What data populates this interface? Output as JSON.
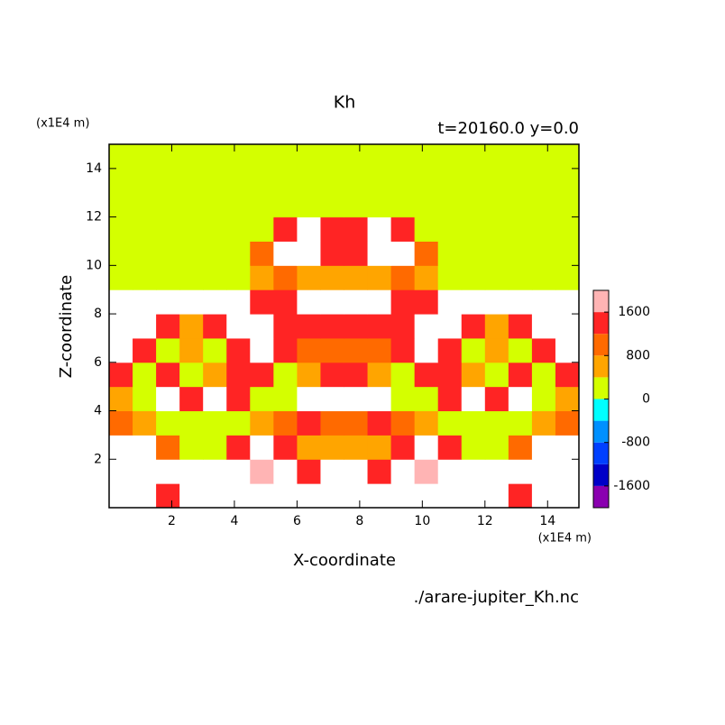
{
  "chart_data": {
    "type": "contour",
    "title": "Kh",
    "subtitle": "t=20160.0 y=0.0",
    "x_label": "X-coordinate",
    "y_label": "Z-coordinate",
    "x_unit": "(x1E4 m)",
    "y_unit": "(x1E4 m)",
    "source": "./arare-jupiter_Kh.nc",
    "xlim": [
      0,
      15
    ],
    "ylim": [
      0,
      15
    ],
    "xticks": [
      2,
      4,
      6,
      8,
      10,
      12,
      14
    ],
    "yticks": [
      2,
      4,
      6,
      8,
      10,
      12,
      14
    ],
    "x": [
      0.375,
      1.125,
      1.875,
      2.625,
      3.375,
      4.125,
      4.875,
      5.625,
      6.375,
      7.125,
      7.875,
      8.625,
      9.375,
      10.125,
      10.875,
      11.625,
      12.375,
      13.125,
      13.875,
      14.625
    ],
    "y": [
      0.5,
      1.5,
      2.5,
      3.5,
      4.5,
      5.5,
      6.5,
      7.5,
      8.5,
      9.5,
      10.5,
      11.5,
      12.5,
      13.5,
      14.5
    ],
    "z": [
      [
        2500,
        2500,
        1400,
        2500,
        2500,
        2500,
        2500,
        2500,
        2500,
        2500,
        2500,
        2500,
        2500,
        2500,
        2500,
        2500,
        2500,
        1400,
        2500,
        2500
      ],
      [
        2500,
        2500,
        2500,
        2500,
        2500,
        2500,
        1800,
        2500,
        1400,
        2500,
        2500,
        1400,
        2500,
        1800,
        2500,
        2500,
        2500,
        2500,
        2500,
        2500
      ],
      [
        2500,
        2500,
        1000,
        200,
        200,
        1400,
        2500,
        1400,
        600,
        600,
        600,
        600,
        1400,
        2500,
        1400,
        200,
        200,
        1000,
        2500,
        2500
      ],
      [
        1000,
        600,
        200,
        200,
        200,
        200,
        600,
        1000,
        1400,
        1000,
        1000,
        1400,
        1000,
        600,
        200,
        200,
        200,
        200,
        600,
        1000
      ],
      [
        600,
        200,
        2500,
        1400,
        2500,
        1400,
        200,
        200,
        2500,
        2500,
        2500,
        2500,
        200,
        200,
        1400,
        2500,
        1400,
        2500,
        200,
        600
      ],
      [
        1400,
        200,
        1400,
        200,
        600,
        1400,
        1400,
        200,
        600,
        1400,
        1400,
        600,
        200,
        1400,
        1400,
        600,
        200,
        1400,
        200,
        1400
      ],
      [
        2500,
        1400,
        200,
        600,
        200,
        1400,
        2500,
        1400,
        1000,
        1000,
        1000,
        1000,
        1400,
        2500,
        1400,
        200,
        600,
        200,
        1400,
        2500
      ],
      [
        2500,
        2500,
        1400,
        600,
        1400,
        2500,
        2500,
        1400,
        1400,
        1400,
        1400,
        1400,
        1400,
        2500,
        2500,
        1400,
        600,
        1400,
        2500,
        2500
      ],
      [
        2500,
        2500,
        2500,
        2500,
        2500,
        2500,
        1400,
        1400,
        2500,
        2500,
        2500,
        2500,
        1400,
        1400,
        2500,
        2500,
        2500,
        2500,
        2500,
        2500
      ],
      [
        200,
        200,
        200,
        200,
        200,
        200,
        600,
        1000,
        600,
        600,
        600,
        600,
        1000,
        600,
        200,
        200,
        200,
        200,
        200,
        200
      ],
      [
        200,
        200,
        200,
        200,
        200,
        200,
        1000,
        2500,
        2500,
        1400,
        1400,
        2500,
        2500,
        1000,
        200,
        200,
        200,
        200,
        200,
        200
      ],
      [
        200,
        200,
        200,
        200,
        200,
        200,
        200,
        1400,
        2500,
        1400,
        1400,
        2500,
        1400,
        200,
        200,
        200,
        200,
        200,
        200,
        200
      ],
      [
        200,
        200,
        200,
        200,
        200,
        200,
        200,
        200,
        200,
        200,
        200,
        200,
        200,
        200,
        200,
        200,
        200,
        200,
        200,
        200
      ],
      [
        200,
        200,
        200,
        200,
        200,
        200,
        200,
        200,
        200,
        200,
        200,
        200,
        200,
        200,
        200,
        200,
        200,
        200,
        200,
        200
      ],
      [
        200,
        200,
        200,
        200,
        200,
        200,
        200,
        200,
        200,
        200,
        200,
        200,
        200,
        200,
        200,
        200,
        200,
        200,
        200,
        200
      ]
    ],
    "levels": [
      -2000,
      -1600,
      -1200,
      -800,
      -400,
      0,
      400,
      800,
      1200,
      1600,
      2000
    ],
    "colors": [
      "#8a00b0",
      "#0000c8",
      "#0040ff",
      "#0090ff",
      "#00ffff",
      "#d4ff00",
      "#ffa500",
      "#ff6a00",
      "#ff2424",
      "#ffb4b4"
    ],
    "colorbar_ticks": [
      -1600,
      -800,
      0,
      800,
      1600
    ]
  }
}
